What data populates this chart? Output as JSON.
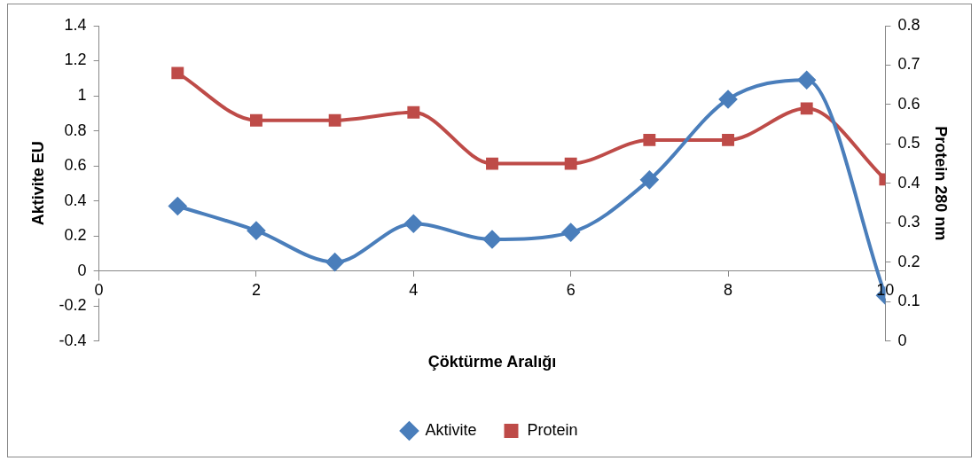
{
  "chart_data": {
    "type": "line",
    "xlabel": "Çöktürme Aralığı",
    "ylabel": "Aktivite EU",
    "y2label": "Protein 280 nm",
    "x": [
      1,
      2,
      3,
      4,
      5,
      6,
      7,
      8,
      9,
      10
    ],
    "series": [
      {
        "name": "Aktivite",
        "color": "#4a7ebb",
        "marker": "diamond",
        "values": [
          0.37,
          0.23,
          0.05,
          0.27,
          0.18,
          0.22,
          0.52,
          0.98,
          1.09,
          -0.14
        ]
      },
      {
        "name": "Protein",
        "color": "#be4b48",
        "marker": "square",
        "axis": "y2",
        "values": [
          0.68,
          0.56,
          0.56,
          0.58,
          0.45,
          0.45,
          0.51,
          0.51,
          0.59,
          0.41
        ]
      }
    ],
    "xlim": [
      0,
      10
    ],
    "xticks": [
      0,
      2,
      4,
      6,
      8,
      10
    ],
    "ylim": [
      -0.4,
      1.4
    ],
    "yticks": [
      -0.4,
      -0.2,
      0,
      0.2,
      0.4,
      0.6,
      0.8,
      1,
      1.2,
      1.4
    ],
    "y2lim": [
      0,
      0.8
    ],
    "y2ticks": [
      0,
      0.1,
      0.2,
      0.3,
      0.4,
      0.5,
      0.6,
      0.7,
      0.8
    ],
    "grid": false,
    "legend": "bottom",
    "line_style": "solid"
  }
}
